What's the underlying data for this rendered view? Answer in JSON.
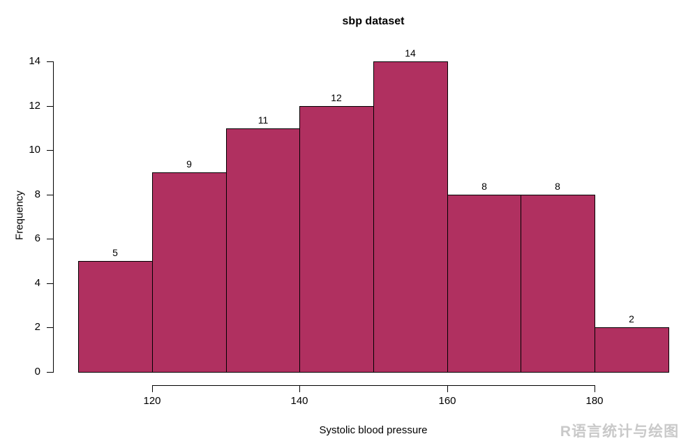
{
  "figure": {
    "title": "sbp dataset",
    "watermark": "R语言统计与绘图"
  },
  "chart_data": {
    "type": "bar",
    "subtype": "histogram",
    "title": "sbp dataset",
    "xlabel": "Systolic blood pressure",
    "ylabel": "Frequency",
    "bin_edges": [
      110,
      120,
      130,
      140,
      150,
      160,
      170,
      180,
      190
    ],
    "values": [
      5,
      9,
      11,
      12,
      14,
      8,
      8,
      2
    ],
    "bar_value_labels": [
      "5",
      "9",
      "11",
      "12",
      "14",
      "8",
      "8",
      "2"
    ],
    "x_ticks": [
      120,
      140,
      160,
      180
    ],
    "x_tick_labels": [
      "120",
      "140",
      "160",
      "180"
    ],
    "y_ticks": [
      0,
      2,
      4,
      6,
      8,
      10,
      12,
      14
    ],
    "y_tick_labels": [
      "0",
      "2",
      "4",
      "6",
      "8",
      "10",
      "12",
      "14"
    ],
    "xlim": [
      110,
      190
    ],
    "ylim": [
      0,
      14
    ],
    "bar_fill_color": "#B03060",
    "bar_border_color": "#000000",
    "grid": false,
    "legend": null
  }
}
